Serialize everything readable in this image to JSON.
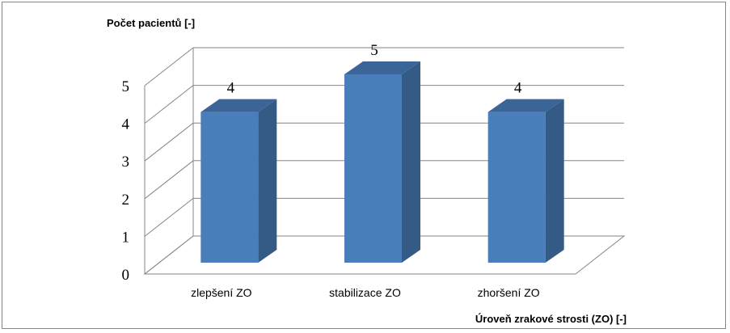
{
  "chart_data": {
    "type": "bar",
    "style": "3d-column",
    "ylabel": "Počet pacientů [-]",
    "xlabel": "Úroveň zrakové strosti (ZO) [-]",
    "categories": [
      "zlepšení ZO",
      "stabilizace ZO",
      "zhoršení ZO"
    ],
    "values": [
      4,
      5,
      4
    ],
    "data_labels": [
      "4",
      "5",
      "4"
    ],
    "yticks": [
      "0",
      "1",
      "2",
      "3",
      "4",
      "5"
    ],
    "ylim": [
      0,
      5
    ],
    "grid": true,
    "legend": "none",
    "colors": {
      "bar_front": "#4a7ebb",
      "bar_side": "#345a86",
      "bar_top": "#3b6597",
      "grid": "#868686"
    }
  }
}
